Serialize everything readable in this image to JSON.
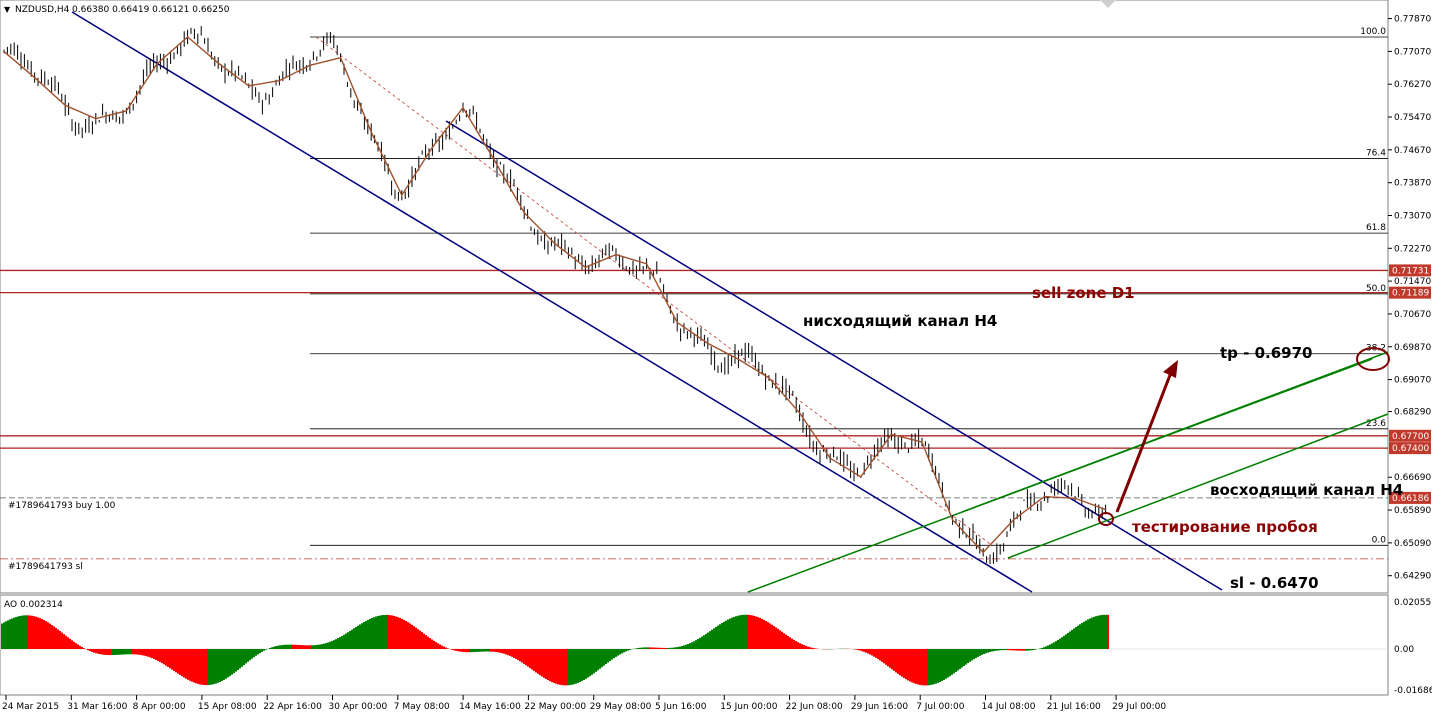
{
  "chart_header": {
    "symbol_label": "NZDUSD,H4",
    "ohlc": "0.66380 0.66419 0.66121 0.66250",
    "arrow": "▼"
  },
  "indicator_header": "AO 0.002314",
  "colors": {
    "candles": "#000000",
    "zigzag": "#a0522d",
    "channel_down": "#000080",
    "channel_up": "#008000",
    "resistance": "#b22222",
    "fibo": "#000000",
    "arrow": "#800000",
    "ao_up": "#008000",
    "ao_down": "#ff0000",
    "price_tag": "#c0392b"
  },
  "price_axis": {
    "labels": [
      "0.77870",
      "0.77070",
      "0.76270",
      "0.75470",
      "0.74670",
      "0.73870",
      "0.73070",
      "0.72270",
      "0.71470",
      "0.70670",
      "0.69870",
      "0.69070",
      "0.68290",
      "0.66690",
      "0.65890",
      "0.65090",
      "0.64290"
    ],
    "tags": [
      "0.71731",
      "0.71189",
      "0.67700",
      "0.67400",
      "0.66186"
    ]
  },
  "ao_axis": {
    "labels": [
      "0.020553",
      "0.00",
      "-0.016864"
    ]
  },
  "time_axis": {
    "labels": [
      "24 Mar 2015",
      "31 Mar 16:00",
      "8 Apr 00:00",
      "15 Apr 08:00",
      "22 Apr 16:00",
      "30 Apr 00:00",
      "7 May 08:00",
      "14 May 16:00",
      "22 May 00:00",
      "29 May 08:00",
      "5 Jun 16:00",
      "15 Jun 00:00",
      "22 Jun 08:00",
      "29 Jun 16:00",
      "7 Jul 00:00",
      "14 Jul 08:00",
      "21 Jul 16:00",
      "29 Jul 00:00"
    ]
  },
  "fibo_levels": [
    "100.0",
    "76.4",
    "61.8",
    "50.0",
    "38.2",
    "23.6",
    "0.0"
  ],
  "orders": {
    "buy": "#1789641793 buy 1.00",
    "sl": "#1789641793 sl"
  },
  "annotations": {
    "sell_zone": "sell zone D1",
    "down_channel": "нисходящий канал H4",
    "tp": "tp - 0.6970",
    "up_channel": "восходящий канал H4",
    "test": "тестирование пробоя",
    "sl": "sl - 0.6470"
  },
  "chart_data": {
    "type": "candlestick",
    "symbol": "NZDUSD",
    "timeframe": "H4",
    "last_bar_ohlc": [
      0.6638,
      0.66419,
      0.66121,
      0.6625
    ],
    "ylim": [
      0.6399,
      0.7803
    ],
    "x": [
      "24 Mar 2015",
      "31 Mar 16:00",
      "8 Apr 00:00",
      "15 Apr 08:00",
      "22 Apr 16:00",
      "30 Apr 00:00",
      "7 May 08:00",
      "14 May 16:00",
      "22 May 00:00",
      "29 May 08:00",
      "5 Jun 16:00",
      "15 Jun 00:00",
      "22 Jun 08:00",
      "29 Jun 16:00",
      "7 Jul 00:00",
      "14 Jul 08:00",
      "21 Jul 16:00",
      "29 Jul 00:00"
    ],
    "price_path": [
      [
        "24 Mar 2015",
        0.769
      ],
      [
        "31 Mar 16:00",
        0.754
      ],
      [
        "8 Apr 00:00",
        0.762
      ],
      [
        "15 Apr 08:00",
        0.771
      ],
      [
        "22 Apr 16:00",
        0.764
      ],
      [
        "30 Apr 00:00",
        0.768
      ],
      [
        "7 May 08:00",
        0.741
      ],
      [
        "14 May 16:00",
        0.752
      ],
      [
        "22 May 00:00",
        0.734
      ],
      [
        "29 May 08:00",
        0.716
      ],
      [
        "5 Jun 16:00",
        0.716
      ],
      [
        "15 Jun 00:00",
        0.695
      ],
      [
        "22 Jun 08:00",
        0.685
      ],
      [
        "29 Jun 16:00",
        0.671
      ],
      [
        "7 Jul 00:00",
        0.672
      ],
      [
        "14 Jul 08:00",
        0.651
      ],
      [
        "21 Jul 16:00",
        0.66
      ],
      [
        "29 Jul 00:00",
        0.662
      ]
    ],
    "horizontal_levels": {
      "sell_zone_top": 0.71731,
      "sell_zone_bottom": 0.71189,
      "resist_1": 0.677,
      "resist_2": 0.674,
      "current": 0.66186
    },
    "fibonacci": {
      "100.0": 0.7742,
      "76.4": 0.7446,
      "61.8": 0.7264,
      "50.0": 0.7116,
      "38.2": 0.697,
      "23.6": 0.6787,
      "0.0": 0.6503
    },
    "indicator": {
      "name": "AO",
      "value": 0.002314,
      "ylim": [
        -0.016864,
        0.020553
      ]
    }
  }
}
